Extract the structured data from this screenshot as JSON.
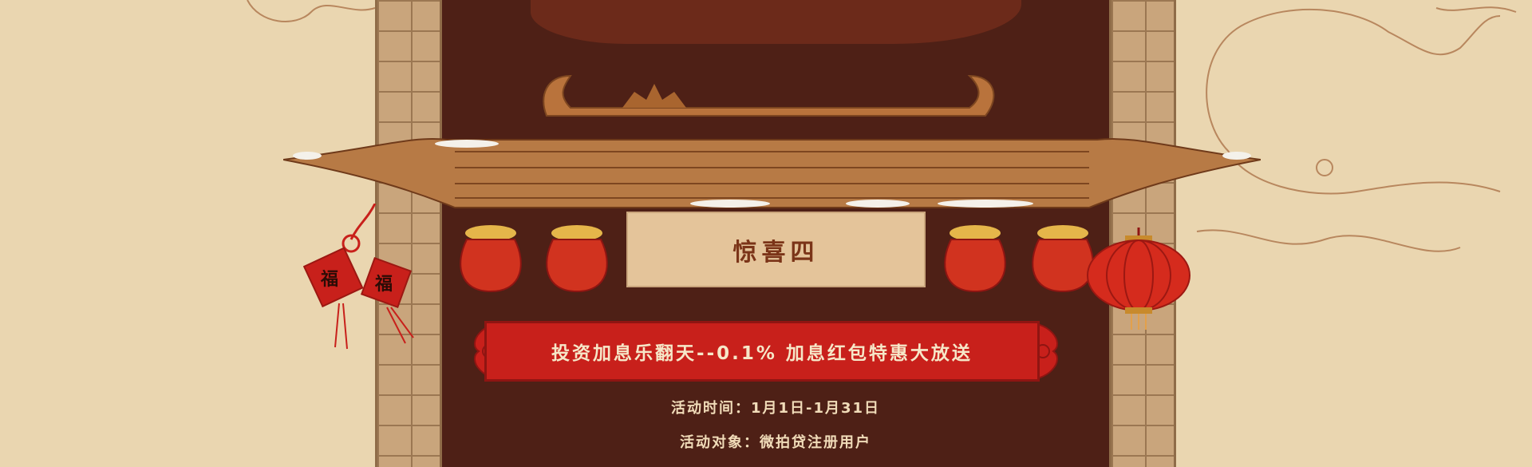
{
  "panel": {
    "title": "惊喜四",
    "headline": "投资加息乐翻天--0.1% 加息红包特惠大放送",
    "time_label": "活动时间：1月1日-1月31日",
    "target_label": "活动对象：微拍贷注册用户"
  },
  "decorations": {
    "fu_tags": "福"
  },
  "colors": {
    "background": "#ead6b0",
    "hall": "#4e2016",
    "accent_red": "#c8201b",
    "title_text": "#7b3418"
  }
}
